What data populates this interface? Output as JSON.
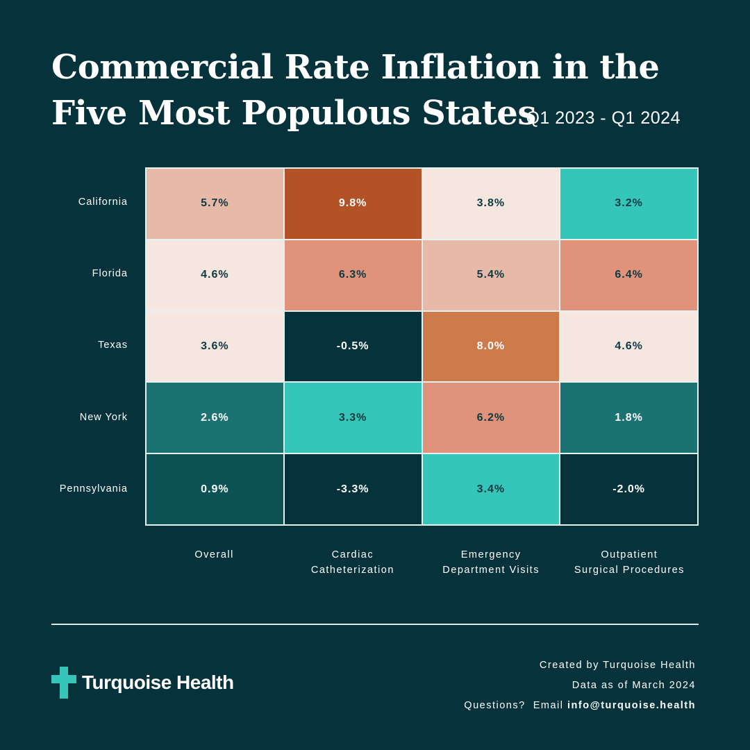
{
  "header": {
    "title_line1": "Commercial Rate Inflation in the",
    "title_line2": "Five Most Populous States",
    "period": "Q1 2023 - Q1 2024"
  },
  "chart_data": {
    "type": "heatmap",
    "title": "Commercial Rate Inflation in the Five Most Populous States",
    "subtitle": "Q1 2023 - Q1 2024",
    "rows": [
      "California",
      "Florida",
      "Texas",
      "New York",
      "Pennsylvania"
    ],
    "columns": [
      [
        "Overall"
      ],
      [
        "Cardiac",
        "Catheterization"
      ],
      [
        "Emergency",
        "Department Visits"
      ],
      [
        "Outpatient",
        "Surgical Procedures"
      ]
    ],
    "values": [
      [
        5.7,
        9.8,
        3.8,
        3.2
      ],
      [
        4.6,
        6.3,
        5.4,
        6.4
      ],
      [
        3.6,
        -0.5,
        8.0,
        4.6
      ],
      [
        2.6,
        3.3,
        6.2,
        1.8
      ],
      [
        0.9,
        -3.3,
        3.4,
        -2.0
      ]
    ],
    "labels": [
      [
        "5.7%",
        "9.8%",
        "3.8%",
        "3.2%"
      ],
      [
        "4.6%",
        "6.3%",
        "5.4%",
        "6.4%"
      ],
      [
        "3.6%",
        "-0.5%",
        "8.0%",
        "4.6%"
      ],
      [
        "2.6%",
        "3.3%",
        "6.2%",
        "1.8%"
      ],
      [
        "0.9%",
        "-3.3%",
        "3.4%",
        "-2.0%"
      ]
    ],
    "colors": [
      [
        "#e7b9a9",
        "#b35127",
        "#f6e6e0",
        "#35c5b9"
      ],
      [
        "#f6e6e0",
        "#e0937a",
        "#e7b9a9",
        "#e0937a"
      ],
      [
        "#f6e6e0",
        "#06323b",
        "#cd7b4a",
        "#f6e6e0"
      ],
      [
        "#1a7370",
        "#35c5b9",
        "#e0937a",
        "#1a7370"
      ],
      [
        "#0d5254",
        "#06323b",
        "#35c5b9",
        "#06323b"
      ]
    ],
    "text_colors": {
      "dark": "#0d3a40",
      "light": "#ffffff"
    }
  },
  "brand": {
    "name": "Turquoise Health",
    "logo_color": "#35c5b9"
  },
  "footer": {
    "created_by": "Created by Turquoise Health",
    "data_as_of": "Data as of March 2024",
    "questions": "Questions?  Email ",
    "email": "info@turquoise.health"
  },
  "colors": {
    "background": "#06323b",
    "grid_line": "#e6f2f0"
  }
}
